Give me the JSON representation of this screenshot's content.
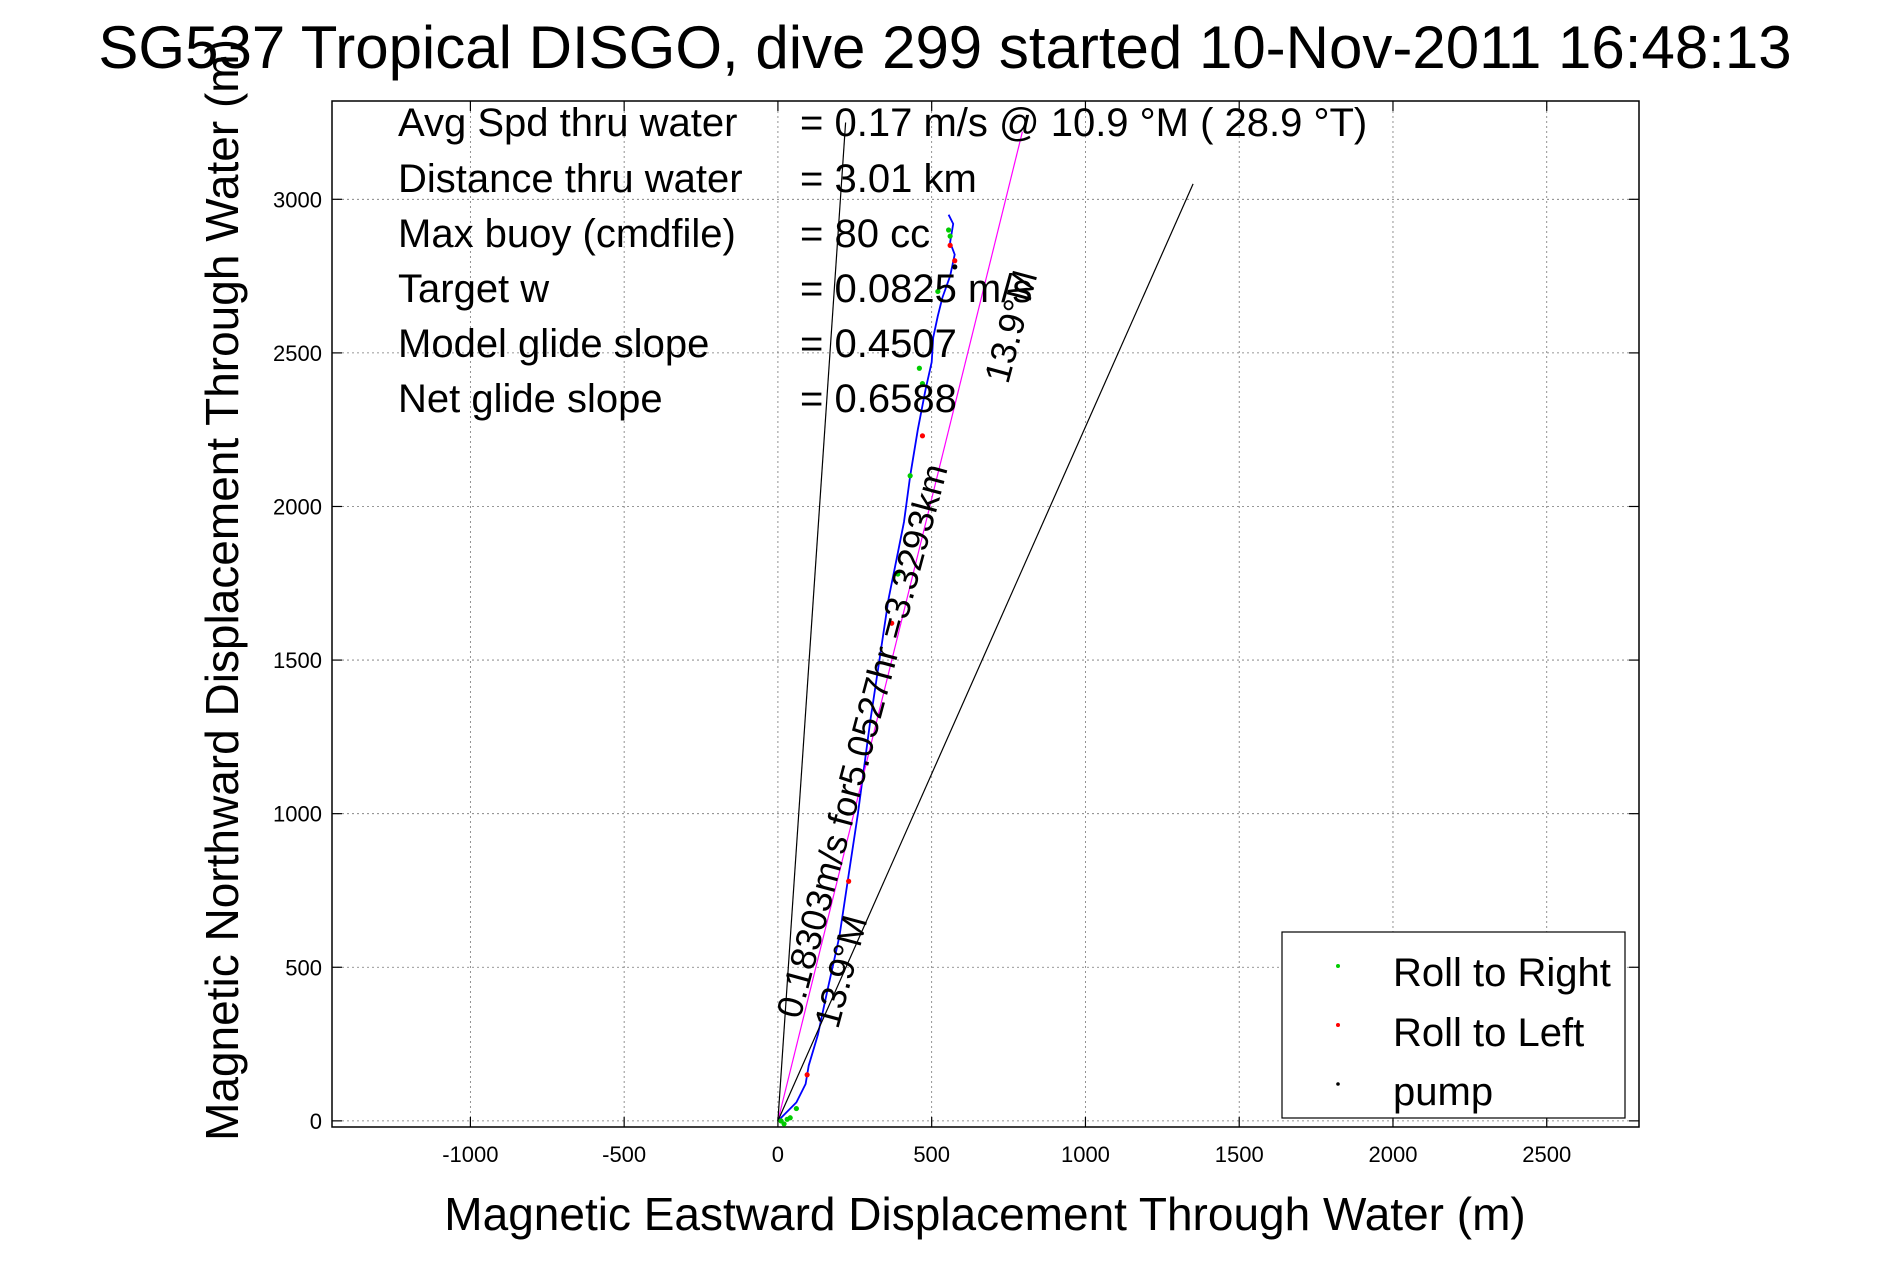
{
  "chart_data": {
    "type": "line",
    "title": "SG537 Tropical DISGO, dive 299 started 10-Nov-2011 16:48:13",
    "xlabel": "Magnetic Eastward Displacement Through Water (m)",
    "ylabel": "Magnetic Northward Displacement Through Water (m)",
    "xlim": [
      -1450,
      2800
    ],
    "ylim": [
      -20,
      3320
    ],
    "xticks": [
      -1000,
      -500,
      0,
      500,
      1000,
      1500,
      2000,
      2500
    ],
    "yticks": [
      0,
      500,
      1000,
      1500,
      2000,
      2500,
      3000
    ],
    "xtick_labels": [
      "-1000",
      "-500",
      "0",
      "500",
      "1000",
      "1500",
      "2000",
      "2500"
    ],
    "ytick_labels": [
      "0",
      "500",
      "1000",
      "1500",
      "2000",
      "2500",
      "3000"
    ],
    "grid": true,
    "legend_position": "bottom-right",
    "info_lines": [
      {
        "label": "Avg Spd thru water",
        "value": "=  0.17 m/s @   10.9 °M ( 28.9 °T)"
      },
      {
        "label": "Distance thru water",
        "value": "=  3.01 km"
      },
      {
        "label": "Max buoy (cmdfile)",
        "value": "= 80 cc"
      },
      {
        "label": "Target w",
        "value": "= 0.0825 m/s"
      },
      {
        "label": "Model glide slope",
        "value": "= 0.4507"
      },
      {
        "label": "Net glide slope",
        "value": "= 0.6588"
      }
    ],
    "annotations": [
      {
        "text": "0.18303m/s for5.0527hr =3.3293km",
        "x": 20,
        "y": 330
      },
      {
        "text": "13.9°M",
        "x": 700,
        "y": 2380
      },
      {
        "text": "13.9°M",
        "x": 150,
        "y": 320
      }
    ],
    "series": [
      {
        "name": "dive track",
        "color": "#0000ff",
        "x": [
          0,
          20,
          60,
          90,
          100,
          130,
          160,
          200,
          230,
          260,
          300,
          330,
          360,
          390,
          410,
          430,
          455,
          480,
          500,
          505,
          520,
          535,
          560,
          575,
          560,
          570,
          555
        ],
        "y": [
          0,
          20,
          60,
          120,
          180,
          280,
          420,
          600,
          800,
          1000,
          1300,
          1500,
          1700,
          1850,
          1950,
          2100,
          2250,
          2380,
          2470,
          2550,
          2620,
          2680,
          2750,
          2820,
          2860,
          2920,
          2950
        ]
      },
      {
        "name": "heading line",
        "color": "#ff00ff",
        "x": [
          0,
          795
        ],
        "y": [
          0,
          3220
        ]
      },
      {
        "name": "bound line left",
        "color": "#000000",
        "x": [
          0,
          220
        ],
        "y": [
          0,
          3250
        ]
      },
      {
        "name": "bound line right",
        "color": "#000000",
        "x": [
          0,
          1350
        ],
        "y": [
          0,
          3050
        ]
      },
      {
        "name": "Roll to Right",
        "color": "#00cc00",
        "marker": true,
        "x": [
          10,
          20,
          30,
          40,
          60,
          460,
          430,
          390,
          560,
          555,
          520,
          470
        ],
        "y": [
          0,
          -10,
          5,
          10,
          40,
          2450,
          2100,
          1780,
          2880,
          2900,
          2700,
          2400
        ]
      },
      {
        "name": "Roll to Left",
        "color": "#ff0000",
        "marker": true,
        "x": [
          95,
          230,
          370,
          470,
          560,
          575
        ],
        "y": [
          150,
          780,
          1620,
          2230,
          2850,
          2800
        ]
      },
      {
        "name": "pump",
        "color": "#000000",
        "marker": true,
        "x": [
          575
        ],
        "y": [
          2780
        ]
      }
    ]
  }
}
